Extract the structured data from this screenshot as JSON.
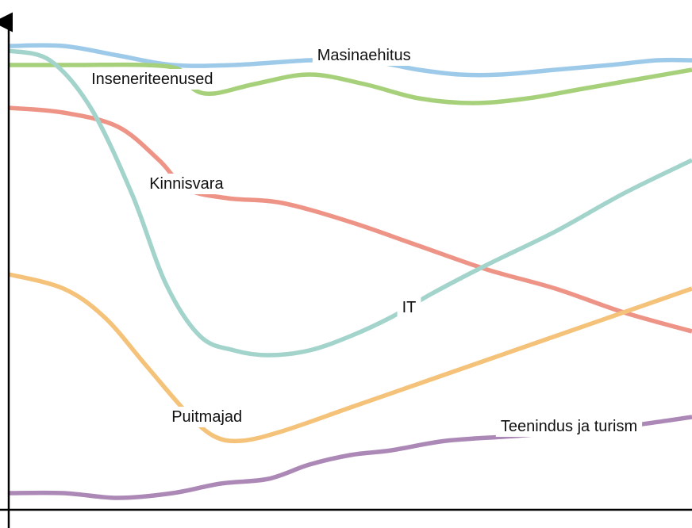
{
  "chart_data": {
    "type": "line",
    "title": "",
    "xlabel": "",
    "ylabel": "",
    "xlim": [
      0,
      100
    ],
    "ylim": [
      0,
      100
    ],
    "grid": false,
    "legend": "none (series labelled inline)",
    "series": [
      {
        "name": "Masinaehitus",
        "color": "#9ecae9",
        "points": [
          [
            0,
            97
          ],
          [
            8,
            97
          ],
          [
            16,
            95
          ],
          [
            24,
            93
          ],
          [
            33,
            93
          ],
          [
            44,
            94
          ],
          [
            52,
            94
          ],
          [
            60,
            92
          ],
          [
            66,
            91
          ],
          [
            72,
            91
          ],
          [
            80,
            92
          ],
          [
            88,
            93
          ],
          [
            95,
            94
          ],
          [
            100,
            94
          ]
        ]
      },
      {
        "name": "Inseneriteenused",
        "color": "#a6d17a",
        "points": [
          [
            0,
            93
          ],
          [
            10,
            93
          ],
          [
            20,
            93
          ],
          [
            25,
            92
          ],
          [
            27,
            88
          ],
          [
            30,
            87
          ],
          [
            36,
            89
          ],
          [
            44,
            91
          ],
          [
            52,
            89
          ],
          [
            60,
            86
          ],
          [
            68,
            85
          ],
          [
            76,
            86
          ],
          [
            84,
            88
          ],
          [
            92,
            90
          ],
          [
            100,
            92
          ]
        ]
      },
      {
        "name": "Kinnisvara",
        "color": "#ee9487",
        "points": [
          [
            0,
            84
          ],
          [
            8,
            83
          ],
          [
            16,
            80
          ],
          [
            22,
            73
          ],
          [
            26,
            67
          ],
          [
            32,
            65
          ],
          [
            40,
            64
          ],
          [
            50,
            60
          ],
          [
            60,
            55
          ],
          [
            70,
            50
          ],
          [
            80,
            46
          ],
          [
            90,
            41
          ],
          [
            100,
            37
          ]
        ]
      },
      {
        "name": "IT",
        "color": "#a3d4cb",
        "points": [
          [
            0,
            96
          ],
          [
            6,
            94
          ],
          [
            12,
            84
          ],
          [
            18,
            66
          ],
          [
            23,
            47
          ],
          [
            28,
            36
          ],
          [
            33,
            33
          ],
          [
            38,
            32
          ],
          [
            44,
            33
          ],
          [
            50,
            36
          ],
          [
            56,
            40
          ],
          [
            62,
            45
          ],
          [
            70,
            51
          ],
          [
            80,
            58
          ],
          [
            90,
            66
          ],
          [
            100,
            73
          ]
        ]
      },
      {
        "name": "Puitmajad",
        "color": "#f5c27a",
        "points": [
          [
            0,
            49
          ],
          [
            8,
            46
          ],
          [
            14,
            40
          ],
          [
            20,
            30
          ],
          [
            26,
            20
          ],
          [
            30,
            15
          ],
          [
            34,
            14
          ],
          [
            40,
            16
          ],
          [
            50,
            21
          ],
          [
            60,
            26
          ],
          [
            70,
            31
          ],
          [
            80,
            36
          ],
          [
            90,
            41
          ],
          [
            100,
            46
          ]
        ]
      },
      {
        "name": "Teenindus ja turism",
        "color": "#ac88b6",
        "points": [
          [
            0,
            3
          ],
          [
            8,
            3
          ],
          [
            16,
            2
          ],
          [
            24,
            3
          ],
          [
            31,
            5
          ],
          [
            38,
            6
          ],
          [
            44,
            9
          ],
          [
            50,
            11
          ],
          [
            56,
            12
          ],
          [
            64,
            14
          ],
          [
            74,
            15
          ],
          [
            82,
            16
          ],
          [
            90,
            17
          ],
          [
            100,
            19
          ]
        ]
      }
    ],
    "labels": [
      {
        "text": "Masinaehitus",
        "series": "Masinaehitus",
        "x": 52,
        "y": 95
      },
      {
        "text": "Inseneriteenused",
        "series": "Inseneriteenused",
        "x": 21,
        "y": 90
      },
      {
        "text": "Kinnisvara",
        "series": "Kinnisvara",
        "x": 26,
        "y": 68
      },
      {
        "text": "IT",
        "series": "IT",
        "x": 58.6,
        "y": 42
      },
      {
        "text": "Puitmajad",
        "series": "Puitmajad",
        "x": 29,
        "y": 19
      },
      {
        "text": "Teenindus ja turism",
        "series": "Teenindus ja turism",
        "x": 82,
        "y": 17
      }
    ]
  }
}
